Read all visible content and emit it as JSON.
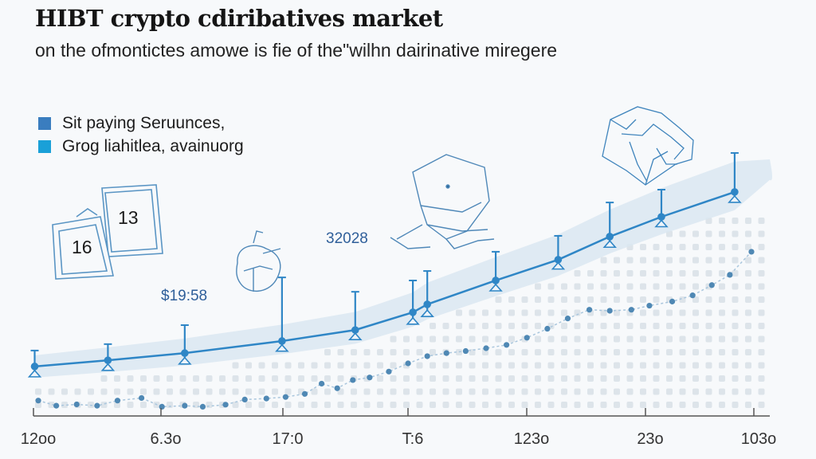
{
  "title": "HIBT crypto cdiribatives market",
  "subtitle": "on the ofmontictes amowe is fie of the\"wilhn dairinative miregere",
  "legend": [
    {
      "label": "Sit paying Seruunces,",
      "color": "#3a7dbf"
    },
    {
      "label": "Grog liahitlea, avainuorg",
      "color": "#1aa0d8"
    }
  ],
  "colors": {
    "line": "#2f86c6",
    "band": "#dbe7f1",
    "dots": "#dde4ea",
    "secondary": "#4f88b4",
    "axis": "#555555",
    "sketch": "#3d7fb5"
  },
  "annotations": {
    "value_a": "$19:58",
    "value_b": "32028",
    "card_front": "16",
    "card_back": "13"
  },
  "chart_data": {
    "type": "line",
    "title": "HIBT crypto cdiribatives market",
    "subtitle": "on the ofmontictes amowe is fie of the\"wilhn dairinative miregere",
    "xlabel": "",
    "ylabel": "",
    "x_ticks": [
      "12oo",
      "6.3o",
      "17:0",
      "T:6",
      "123o",
      "23o",
      "103o"
    ],
    "xlim": [
      0,
      6
    ],
    "ylim": [
      0,
      100
    ],
    "grid": false,
    "legend_position": "top-left",
    "series": [
      {
        "name": "Sit paying Seruunces,",
        "style": "line-with-error-bars",
        "x": [
          0.01,
          0.62,
          1.26,
          2.07,
          2.68,
          3.16,
          3.28,
          3.85,
          4.37,
          4.8,
          5.23,
          5.84
        ],
        "values": [
          19.3,
          21.7,
          24.5,
          29.2,
          33.5,
          40.4,
          43.5,
          52.8,
          60.9,
          69.9,
          77.6,
          87.3
        ],
        "error_upper": [
          25.5,
          28.0,
          35.4,
          54.0,
          48.4,
          52.8,
          56.5,
          64.0,
          70.2,
          83.2,
          88.2,
          102.5
        ],
        "error_lower": [
          16.5,
          19.0,
          21.5,
          26.5,
          31.0,
          37.0,
          40.0,
          50.0,
          58.5,
          67.0,
          75.0,
          84.5
        ]
      },
      {
        "name": "Grog liahitlea, avainuorg",
        "style": "dotted-line",
        "x": [
          0.04,
          0.19,
          0.36,
          0.53,
          0.7,
          0.9,
          1.07,
          1.26,
          1.41,
          1.6,
          1.76,
          1.94,
          2.1,
          2.26,
          2.4,
          2.53,
          2.66,
          2.8,
          2.96,
          3.12,
          3.28,
          3.44,
          3.6,
          3.77,
          3.94,
          4.11,
          4.28,
          4.45,
          4.63,
          4.8,
          4.98,
          5.13,
          5.32,
          5.49,
          5.65,
          5.8,
          5.98
        ],
        "values": [
          6.0,
          4.0,
          4.5,
          4.0,
          6.0,
          7.0,
          3.6,
          4.0,
          3.6,
          4.4,
          6.4,
          6.8,
          7.4,
          8.6,
          12.6,
          10.8,
          14.0,
          15.0,
          17.3,
          20.5,
          23.3,
          24.5,
          25.3,
          26.4,
          27.7,
          30.5,
          34.0,
          38.0,
          41.4,
          41.0,
          41.4,
          43.0,
          44.6,
          47.0,
          51.0,
          55.0,
          64.0
        ]
      }
    ]
  }
}
